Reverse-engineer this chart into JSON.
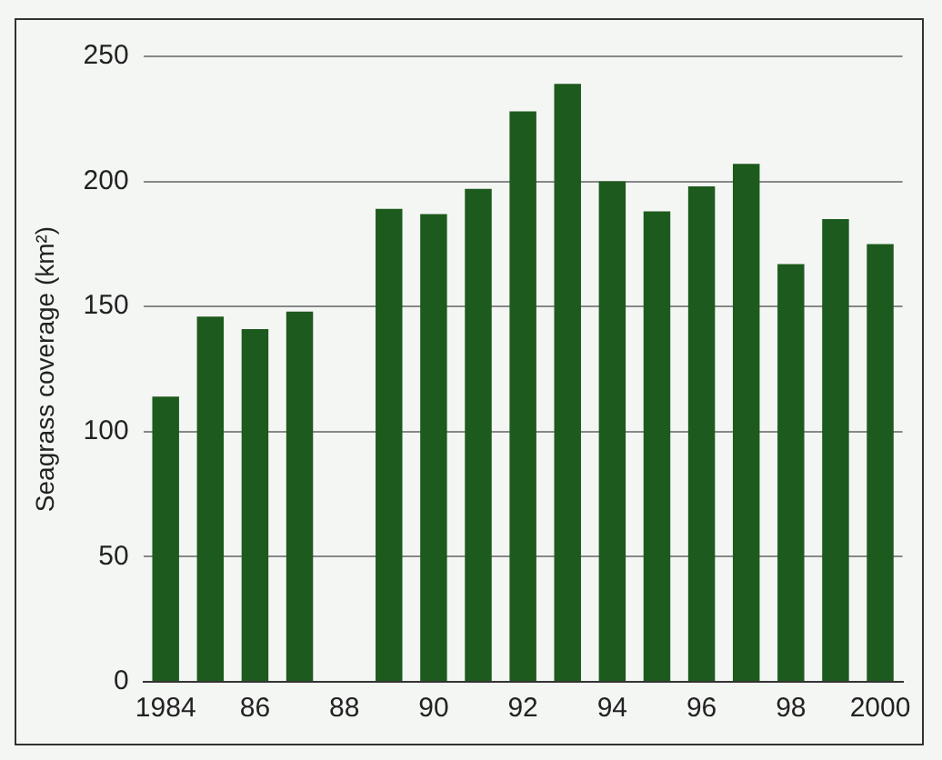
{
  "chart_data": {
    "type": "bar",
    "ylabel": "Seagrass coverage (km²)",
    "categories": [
      "1984",
      null,
      "86",
      null,
      "88",
      null,
      "90",
      null,
      "92",
      null,
      "94",
      null,
      "96",
      null,
      "98",
      null,
      "2000"
    ],
    "values": [
      114,
      146,
      141,
      148,
      null,
      189,
      187,
      197,
      228,
      239,
      200,
      188,
      198,
      207,
      167,
      185,
      175
    ],
    "color": "#1d5a1d",
    "ylim": [
      0,
      250
    ],
    "yticks": [
      0,
      50,
      100,
      150,
      200,
      250
    ],
    "grid": "y",
    "legend": false
  }
}
